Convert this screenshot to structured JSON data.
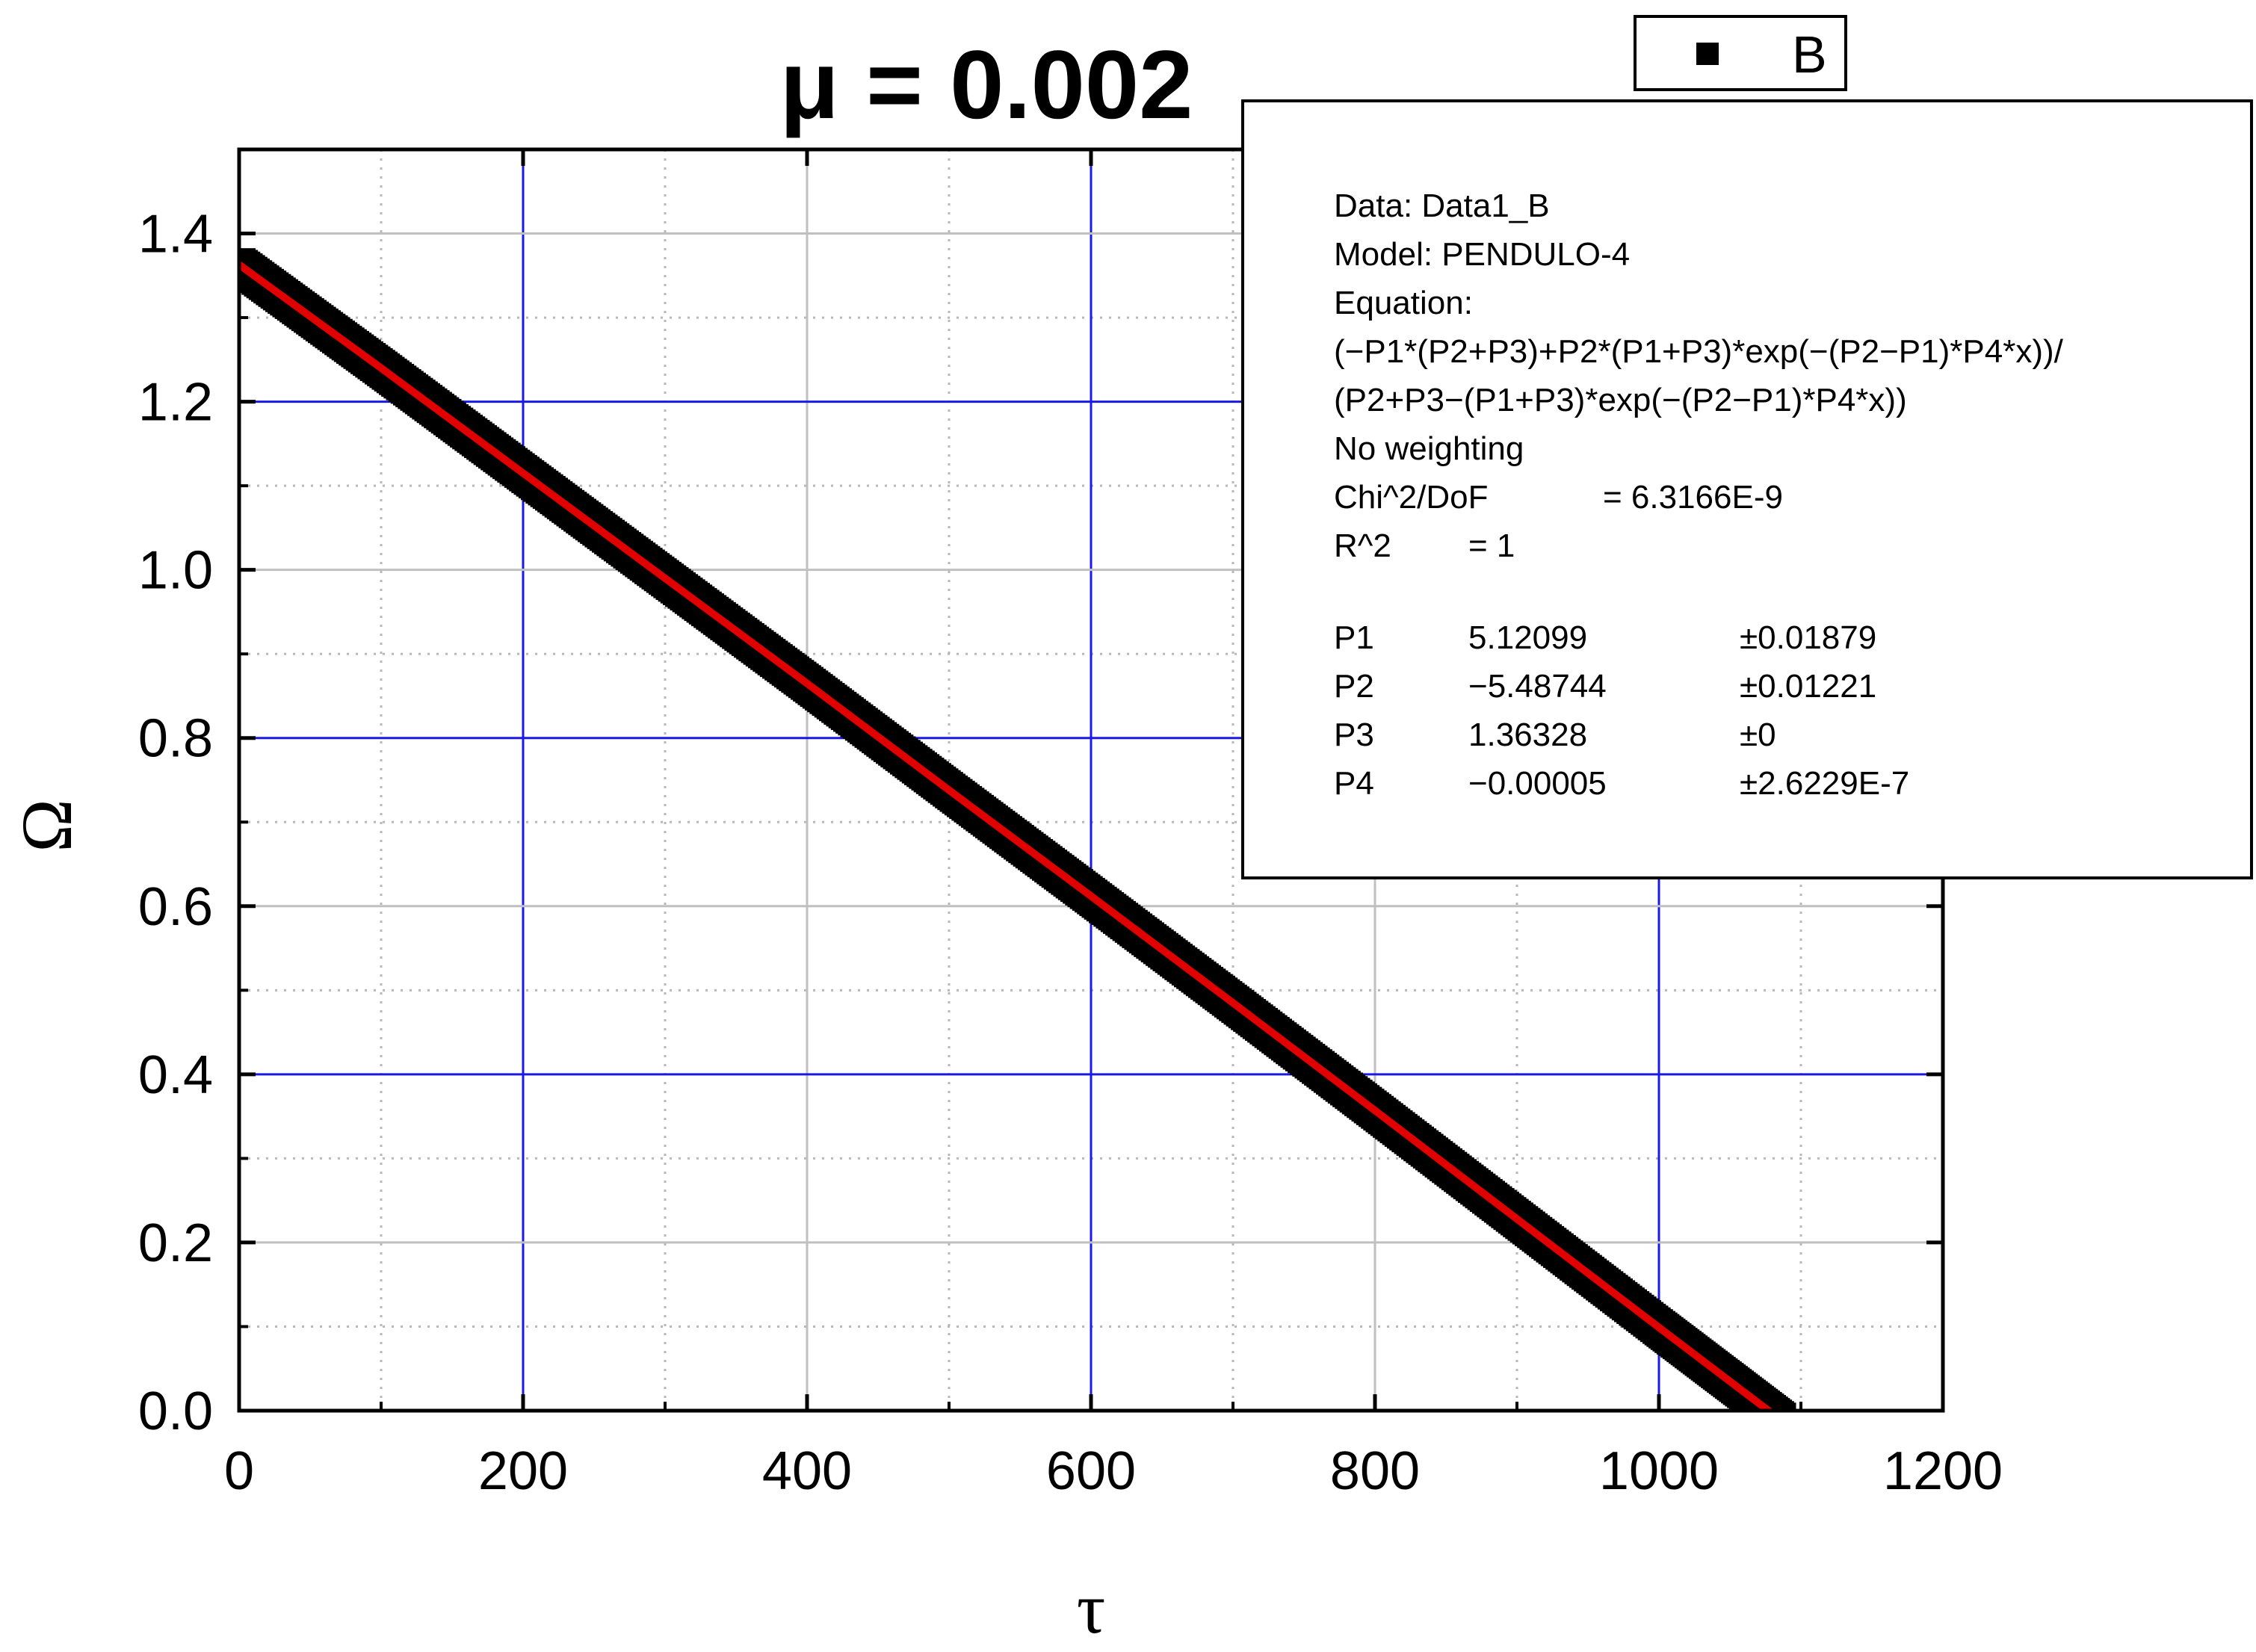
{
  "chart_data": {
    "type": "scatter",
    "title": "μ = 0.002",
    "xlabel": "τ",
    "ylabel": "Ω",
    "xlim": [
      0,
      1200
    ],
    "ylim": [
      0.0,
      1.5
    ],
    "x_ticks": [
      "0",
      "200",
      "400",
      "600",
      "800",
      "1000",
      "1200"
    ],
    "y_ticks": [
      "0.0",
      "0.2",
      "0.4",
      "0.6",
      "0.8",
      "1.0",
      "1.2",
      "1.4"
    ],
    "grid": true,
    "legend": {
      "placement": "top-right",
      "entries": [
        {
          "label": "B",
          "marker": "square",
          "color": "#000000"
        }
      ]
    },
    "series": [
      {
        "name": "B",
        "kind": "scatter",
        "marker": "square",
        "color": "#000000",
        "x": [
          0,
          100,
          200,
          300,
          400,
          500,
          600,
          700,
          800,
          900,
          1000,
          1085
        ],
        "y": [
          1.363,
          1.24,
          1.115,
          0.99,
          0.865,
          0.738,
          0.612,
          0.485,
          0.357,
          0.228,
          0.099,
          -0.01
        ]
      }
    ],
    "fit": {
      "color": "#e00000",
      "x": [
        0,
        100,
        200,
        300,
        400,
        500,
        600,
        700,
        800,
        900,
        1000,
        1085
      ],
      "y": [
        1.363,
        1.24,
        1.115,
        0.99,
        0.865,
        0.738,
        0.612,
        0.485,
        0.357,
        0.228,
        0.099,
        -0.01
      ]
    },
    "fit_box": {
      "lines": [
        "Data: Data1_B",
        "Model: PENDULO-4",
        "Equation:",
        "(−P1*(P2+P3)+P2*(P1+P3)*exp(−(P2−P1)*P4*x))/",
        "(P2+P3−(P1+P3)*exp(−(P2−P1)*P4*x))",
        "No weighting"
      ],
      "chi_label": "Chi^2/DoF",
      "chi_value": "= 6.3166E-9",
      "r2_label": "R^2",
      "r2_value": "=  1",
      "params": [
        {
          "name": "P1",
          "value": "5.12099",
          "error": "±0.01879"
        },
        {
          "name": "P2",
          "value": "−5.48744",
          "error": "±0.01221"
        },
        {
          "name": "P3",
          "value": "1.36328",
          "error": "±0"
        },
        {
          "name": "P4",
          "value": "−0.00005",
          "error": "±2.6229E-7"
        }
      ]
    }
  }
}
